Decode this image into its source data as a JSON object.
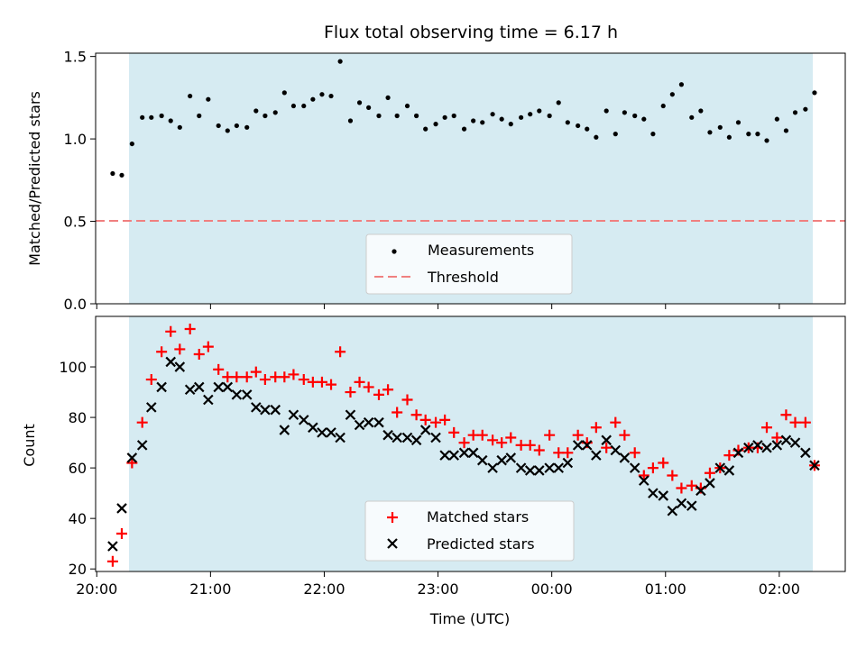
{
  "figure": {
    "title": "Flux total observing time = 6.17 h"
  },
  "chart_data": [
    {
      "type": "scatter",
      "ylabel": "Matched/Predicted stars",
      "xlabel": "",
      "x_unit": "hours from 20:00 UTC",
      "xlim": [
        19.99,
        26.58
      ],
      "ylim": [
        0,
        1.52
      ],
      "yticks": [
        0.0,
        0.5,
        1.0,
        1.5
      ],
      "ytick_labels": [
        "0.0",
        "0.5",
        "1.0",
        "1.5"
      ],
      "shaded_span": [
        20.14,
        26.31
      ],
      "threshold": 0.5,
      "legend": {
        "placement": "lower-center",
        "entries": [
          {
            "label": "Measurements",
            "color": "#000000",
            "marker": "dot"
          },
          {
            "label": "Threshold",
            "color": "#f08080",
            "marker": "dashed-line"
          }
        ]
      },
      "series": [
        {
          "name": "Measurements",
          "x": [
            20.14,
            20.22,
            20.31,
            20.4,
            20.48,
            20.57,
            20.65,
            20.73,
            20.82,
            20.9,
            20.98,
            21.07,
            21.15,
            21.23,
            21.32,
            21.4,
            21.48,
            21.57,
            21.65,
            21.73,
            21.82,
            21.9,
            21.98,
            22.06,
            22.14,
            22.23,
            22.31,
            22.39,
            22.48,
            22.56,
            22.64,
            22.73,
            22.81,
            22.89,
            22.98,
            23.06,
            23.14,
            23.23,
            23.31,
            23.39,
            23.48,
            23.56,
            23.64,
            23.73,
            23.81,
            23.89,
            23.98,
            24.06,
            24.14,
            24.23,
            24.31,
            24.39,
            24.48,
            24.56,
            24.64,
            24.73,
            24.81,
            24.89,
            24.98,
            25.06,
            25.14,
            25.23,
            25.31,
            25.39,
            25.48,
            25.56,
            25.64,
            25.73,
            25.81,
            25.89,
            25.98,
            26.06,
            26.14,
            26.23,
            26.31
          ],
          "y": [
            0.79,
            0.78,
            0.97,
            1.13,
            1.13,
            1.14,
            1.11,
            1.07,
            1.26,
            1.14,
            1.24,
            1.08,
            1.05,
            1.08,
            1.07,
            1.17,
            1.14,
            1.16,
            1.28,
            1.2,
            1.2,
            1.24,
            1.27,
            1.26,
            1.47,
            1.11,
            1.22,
            1.19,
            1.14,
            1.25,
            1.14,
            1.2,
            1.14,
            1.06,
            1.09,
            1.13,
            1.14,
            1.06,
            1.11,
            1.1,
            1.15,
            1.12,
            1.09,
            1.13,
            1.15,
            1.17,
            1.14,
            1.22,
            1.1,
            1.08,
            1.06,
            1.01,
            1.17,
            1.03,
            1.16,
            1.14,
            1.12,
            1.03,
            1.2,
            1.27,
            1.33,
            1.13,
            1.17,
            1.04,
            1.07,
            1.01,
            1.1,
            1.03,
            1.03,
            0.99,
            1.12,
            1.05,
            1.16,
            1.18,
            1.28
          ]
        }
      ]
    },
    {
      "type": "scatter",
      "ylabel": "Count",
      "xlabel": "Time (UTC)",
      "x_unit": "hours from 20:00 UTC",
      "xlim": [
        19.99,
        26.58
      ],
      "ylim": [
        19,
        120
      ],
      "yticks": [
        20,
        40,
        60,
        80,
        100
      ],
      "ytick_labels": [
        "20",
        "40",
        "60",
        "80",
        "100"
      ],
      "xticks": [
        20,
        21,
        22,
        23,
        24,
        25,
        26
      ],
      "xtick_labels": [
        "20:00",
        "21:00",
        "22:00",
        "23:00",
        "00:00",
        "01:00",
        "02:00"
      ],
      "shaded_span": [
        20.14,
        26.31
      ],
      "legend": {
        "placement": "lower-center",
        "entries": [
          {
            "label": "Matched stars",
            "color": "#ff0000",
            "marker": "plus"
          },
          {
            "label": "Predicted stars",
            "color": "#000000",
            "marker": "x"
          }
        ]
      },
      "series": [
        {
          "name": "Matched stars",
          "color": "#ff0000",
          "x": [
            20.14,
            20.22,
            20.31,
            20.4,
            20.48,
            20.57,
            20.65,
            20.73,
            20.82,
            20.9,
            20.98,
            21.07,
            21.15,
            21.23,
            21.32,
            21.4,
            21.48,
            21.57,
            21.65,
            21.73,
            21.82,
            21.9,
            21.98,
            22.06,
            22.14,
            22.23,
            22.31,
            22.39,
            22.48,
            22.56,
            22.64,
            22.73,
            22.81,
            22.89,
            22.98,
            23.06,
            23.14,
            23.23,
            23.31,
            23.39,
            23.48,
            23.56,
            23.64,
            23.73,
            23.81,
            23.89,
            23.98,
            24.06,
            24.14,
            24.23,
            24.31,
            24.39,
            24.48,
            24.56,
            24.64,
            24.73,
            24.81,
            24.89,
            24.98,
            25.06,
            25.14,
            25.23,
            25.31,
            25.39,
            25.48,
            25.56,
            25.64,
            25.73,
            25.81,
            25.89,
            25.98,
            26.06,
            26.14,
            26.23,
            26.31
          ],
          "y": [
            23,
            34,
            62,
            78,
            95,
            106,
            114,
            107,
            115,
            105,
            108,
            99,
            96,
            96,
            96,
            98,
            95,
            96,
            96,
            97,
            95,
            94,
            94,
            93,
            106,
            90,
            94,
            92,
            89,
            91,
            82,
            87,
            81,
            79,
            78,
            79,
            74,
            70,
            73,
            73,
            71,
            70,
            72,
            69,
            69,
            67,
            73,
            66,
            66,
            73,
            70,
            76,
            68,
            78,
            73,
            66,
            57,
            60,
            62,
            57,
            52,
            53,
            52,
            58,
            60,
            65,
            67,
            68,
            68,
            76,
            72,
            81,
            78,
            78,
            61
          ]
        },
        {
          "name": "Predicted stars",
          "color": "#000000",
          "x": [
            20.14,
            20.22,
            20.31,
            20.4,
            20.48,
            20.57,
            20.65,
            20.73,
            20.82,
            20.9,
            20.98,
            21.07,
            21.15,
            21.23,
            21.32,
            21.4,
            21.48,
            21.57,
            21.65,
            21.73,
            21.82,
            21.9,
            21.98,
            22.06,
            22.14,
            22.23,
            22.31,
            22.39,
            22.48,
            22.56,
            22.64,
            22.73,
            22.81,
            22.89,
            22.98,
            23.06,
            23.14,
            23.23,
            23.31,
            23.39,
            23.48,
            23.56,
            23.64,
            23.73,
            23.81,
            23.89,
            23.98,
            24.06,
            24.14,
            24.23,
            24.31,
            24.39,
            24.48,
            24.56,
            24.64,
            24.73,
            24.81,
            24.89,
            24.98,
            25.06,
            25.14,
            25.23,
            25.31,
            25.39,
            25.48,
            25.56,
            25.64,
            25.73,
            25.81,
            25.89,
            25.98,
            26.06,
            26.14,
            26.23,
            26.31
          ],
          "y": [
            29,
            44,
            64,
            69,
            84,
            92,
            102,
            100,
            91,
            92,
            87,
            92,
            92,
            89,
            89,
            84,
            83,
            83,
            75,
            81,
            79,
            76,
            74,
            74,
            72,
            81,
            77,
            78,
            78,
            73,
            72,
            72,
            71,
            75,
            72,
            65,
            65,
            66,
            66,
            63,
            60,
            63,
            64,
            60,
            59,
            59,
            60,
            60,
            62,
            69,
            69,
            65,
            71,
            67,
            64,
            60,
            55,
            50,
            49,
            43,
            46,
            45,
            51,
            54,
            60,
            59,
            66,
            68,
            69,
            68,
            69,
            71,
            70,
            66,
            61
          ]
        }
      ]
    }
  ]
}
